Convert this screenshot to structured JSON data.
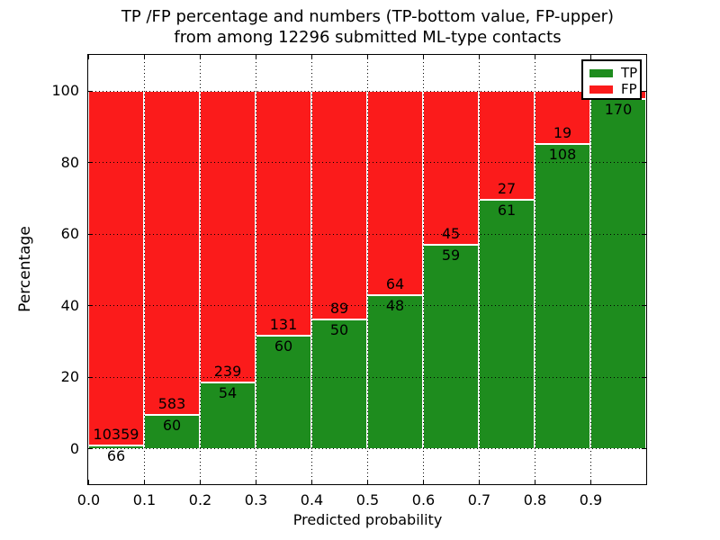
{
  "title": {
    "line1": "TP /FP percentage and numbers (TP-bottom value, FP-upper)",
    "line2": "from among 12296 submitted ML-type contacts"
  },
  "axes": {
    "x": {
      "label": "Predicted probability",
      "tick_labels": [
        "0.0",
        "0.1",
        "0.2",
        "0.3",
        "0.4",
        "0.5",
        "0.6",
        "0.7",
        "0.8",
        "0.9"
      ],
      "range": [
        0.0,
        1.0
      ]
    },
    "y": {
      "label": "Percentage",
      "tick_labels": [
        "0",
        "20",
        "40",
        "60",
        "80",
        "100"
      ],
      "tick_values": [
        0,
        20,
        40,
        60,
        80,
        100
      ],
      "drawn_range": [
        -11,
        110
      ]
    }
  },
  "legend": {
    "position": "upper-right",
    "entries": [
      {
        "label": "TP",
        "color": "#1e8c1e"
      },
      {
        "label": "FP",
        "color": "#fb1b1b"
      }
    ]
  },
  "chart_data": {
    "type": "bar",
    "stacked": true,
    "percent_normalized": true,
    "total_contacts": 12296,
    "bins": [
      "0.0-0.1",
      "0.1-0.2",
      "0.2-0.3",
      "0.3-0.4",
      "0.4-0.5",
      "0.5-0.6",
      "0.6-0.7",
      "0.7-0.8",
      "0.8-0.9",
      "0.9-1.0"
    ],
    "series": [
      {
        "name": "TP",
        "color": "#1e8c1e",
        "counts": [
          66,
          60,
          54,
          60,
          50,
          48,
          59,
          61,
          108,
          170
        ]
      },
      {
        "name": "FP",
        "color": "#fb1b1b",
        "counts": [
          10359,
          583,
          239,
          131,
          89,
          64,
          45,
          27,
          19,
          4
        ]
      }
    ],
    "tp_count_labels": [
      "66",
      "60",
      "54",
      "60",
      "50",
      "48",
      "59",
      "61",
      "108",
      "170"
    ],
    "fp_count_labels": [
      "10359",
      "583",
      "239",
      "131",
      "89",
      "64",
      "45",
      "27",
      "19",
      ""
    ],
    "fp_last_bin_label_hidden_behind_legend": true,
    "title": "TP /FP percentage and numbers (TP-bottom value, FP-upper) from among 12296 submitted ML-type contacts",
    "xlabel": "Predicted probability",
    "ylabel": "Percentage",
    "ylim": [
      -11,
      110
    ],
    "grid": true,
    "grid_style": "dotted"
  },
  "colors": {
    "background": "#ffffff",
    "spine": "#000000",
    "grid": "#000000",
    "bar_edge": "#ffffff",
    "text": "#000000"
  }
}
